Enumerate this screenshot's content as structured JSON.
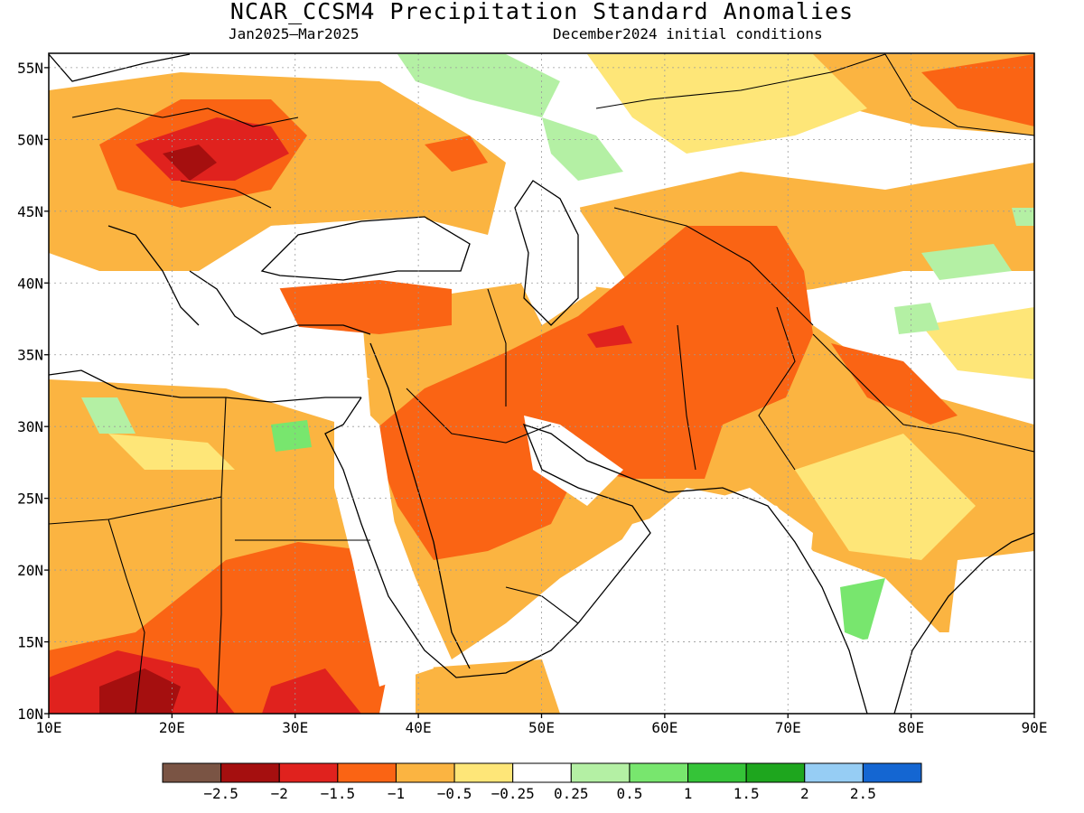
{
  "header": {
    "title": "NCAR_CCSM4 Precipitation Standard Anomalies",
    "period": "Jan2025–Mar2025",
    "initial_conditions": "December2024 initial conditions"
  },
  "map": {
    "lon_range": [
      10,
      90
    ],
    "lat_range": [
      10,
      56
    ],
    "lat_ticks": [
      {
        "value": 55,
        "label": "55N"
      },
      {
        "value": 50,
        "label": "50N"
      },
      {
        "value": 45,
        "label": "45N"
      },
      {
        "value": 40,
        "label": "40N"
      },
      {
        "value": 35,
        "label": "35N"
      },
      {
        "value": 30,
        "label": "30N"
      },
      {
        "value": 25,
        "label": "25N"
      },
      {
        "value": 20,
        "label": "20N"
      },
      {
        "value": 15,
        "label": "15N"
      },
      {
        "value": 10,
        "label": "10N"
      }
    ],
    "lon_ticks": [
      {
        "value": 10,
        "label": "10E"
      },
      {
        "value": 20,
        "label": "20E"
      },
      {
        "value": 30,
        "label": "30E"
      },
      {
        "value": 40,
        "label": "40E"
      },
      {
        "value": 50,
        "label": "50E"
      },
      {
        "value": 60,
        "label": "60E"
      },
      {
        "value": 70,
        "label": "70E"
      },
      {
        "value": 80,
        "label": "80E"
      },
      {
        "value": 90,
        "label": "90E"
      }
    ],
    "grid": true
  },
  "colorbar": {
    "colors": [
      "#7a5444",
      "#a50f0f",
      "#e0221e",
      "#fa6414",
      "#fbb441",
      "#fee678",
      "#ffffff",
      "#b4f0a4",
      "#78e66e",
      "#35c438",
      "#1ea61e",
      "#96cdf4",
      "#1466d2"
    ],
    "labels": [
      "−2.5",
      "−2",
      "−1.5",
      "−1",
      "−0.5",
      "−0.25",
      "0.25",
      "0.5",
      "1",
      "1.5",
      "2",
      "2.5"
    ]
  },
  "palette": {
    "strong_dry": "#a50f0f",
    "dry_red": "#e0221e",
    "dry_orange": "#fa6414",
    "dry_light": "#fbb441",
    "dry_yellow": "#fee678",
    "neutral": "#ffffff",
    "wet_light": "#b4f0a4",
    "wet_green": "#78e66e"
  }
}
